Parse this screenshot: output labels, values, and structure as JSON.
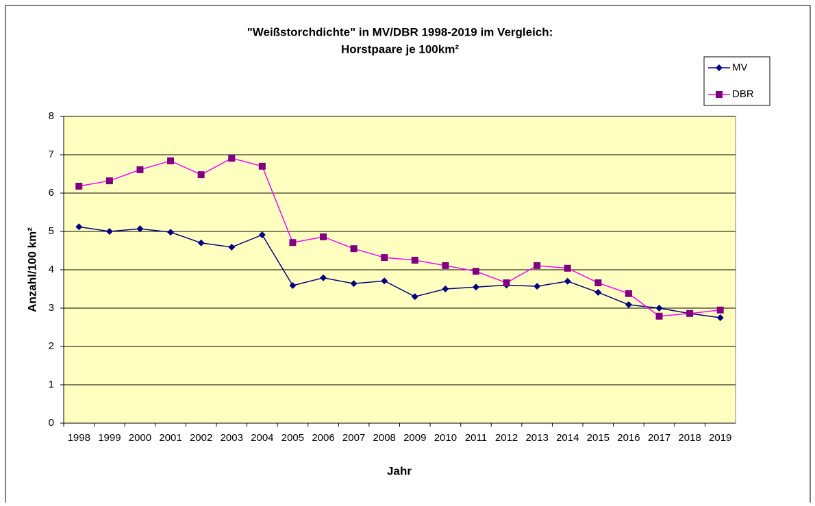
{
  "chart_data": {
    "type": "line",
    "title": [
      "\"Weißstorchdichte\" in MV/DBR 1998-2019 im Vergleich:",
      "Horstpaare je 100km²"
    ],
    "x_label": "Jahr",
    "y_label": "Anzahl/100 km²",
    "categories": [
      "1998",
      "1999",
      "2000",
      "2001",
      "2002",
      "2003",
      "2004",
      "2005",
      "2006",
      "2007",
      "2008",
      "2009",
      "2010",
      "2011",
      "2012",
      "2013",
      "2014",
      "2015",
      "2016",
      "2017",
      "2018",
      "2019"
    ],
    "series": [
      {
        "name": "MV",
        "color": "#000080",
        "marker": "diamond",
        "marker_color": "#000080",
        "values": [
          5.12,
          5.0,
          5.07,
          4.98,
          4.7,
          4.59,
          4.91,
          3.59,
          3.79,
          3.64,
          3.71,
          3.3,
          3.5,
          3.55,
          3.6,
          3.57,
          3.7,
          3.41,
          3.09,
          3.0,
          2.86,
          2.75
        ]
      },
      {
        "name": "DBR",
        "color": "#ff00ff",
        "marker": "square",
        "marker_color": "#800080",
        "values": [
          6.18,
          6.32,
          6.61,
          6.84,
          6.48,
          6.91,
          6.7,
          4.71,
          4.86,
          4.55,
          4.32,
          4.25,
          4.11,
          3.96,
          3.66,
          4.11,
          4.04,
          3.66,
          3.38,
          2.79,
          2.86,
          2.95
        ]
      }
    ],
    "ylim": [
      0,
      8
    ],
    "yticks": [
      0,
      1,
      2,
      3,
      4,
      5,
      6,
      7,
      8
    ],
    "grid": true,
    "plot_background": "#ffffc0",
    "legend": "right"
  }
}
